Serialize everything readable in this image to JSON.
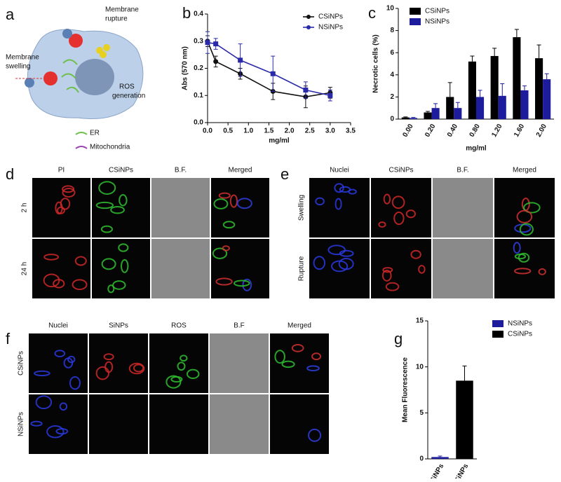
{
  "panel_labels": [
    "a",
    "b",
    "c",
    "d",
    "e",
    "f",
    "g"
  ],
  "diagram": {
    "rupture": [
      "Membrane",
      "rupture"
    ],
    "swelling": [
      "Membrane",
      "swelling"
    ],
    "ros": [
      "ROS",
      "generation"
    ],
    "er": "ER",
    "mito": "Mitochondria"
  },
  "panel_d": {
    "columns": [
      "PI",
      "CSiNPs",
      "B.F.",
      "Merged"
    ],
    "rows": [
      "2 h",
      "24 h"
    ]
  },
  "panel_e": {
    "columns": [
      "Nuclei",
      "CSiNPs",
      "B.F.",
      "Merged"
    ],
    "rows": [
      "Swelling",
      "Rupture"
    ]
  },
  "panel_f": {
    "columns": [
      "Nuclei",
      "SiNPs",
      "ROS",
      "B.F",
      "Merged"
    ],
    "rows": [
      "CSiNPs",
      "NSiNPs"
    ]
  },
  "chart_data": [
    {
      "type": "line",
      "xlabel": "mg/ml",
      "ylabel": "Abs (570 nm)",
      "legend": "upper right",
      "x": [
        0,
        0.2,
        0.8,
        1.6,
        2.4,
        3.0
      ],
      "series": [
        {
          "name": "CSiNPs",
          "color": "#111111",
          "values": [
            0.3,
            0.225,
            0.18,
            0.115,
            0.095,
            0.11
          ],
          "errors": [
            0.02,
            0.02,
            0.02,
            0.03,
            0.04,
            0.02
          ]
        },
        {
          "name": "NSiNPs",
          "color": "#2a2aa8",
          "values": [
            0.295,
            0.29,
            0.23,
            0.18,
            0.12,
            0.1
          ],
          "errors": [
            0.04,
            0.02,
            0.06,
            0.065,
            0.03,
            0.02
          ]
        }
      ],
      "xlim": [
        0,
        3.5
      ],
      "xticks": [
        {
          "value": 0,
          "label": "0.0"
        },
        0.5,
        {
          "value": 1,
          "label": "1.0"
        },
        1.5,
        {
          "value": 2,
          "label": "2.0"
        },
        2.5,
        {
          "value": 3,
          "label": "3.0"
        },
        3.5
      ],
      "ylim": [
        0,
        0.4
      ],
      "yticks": [
        {
          "value": 0,
          "label": "0.0"
        },
        0.1,
        0.2,
        0.3,
        0.4
      ]
    },
    {
      "type": "bar",
      "xlabel": "mg/ml",
      "ylabel": "Necrotic cells (%)",
      "legend": "upper left",
      "categories": [
        "0.00",
        "0.20",
        "0.40",
        "0.80",
        "1.20",
        "1.60",
        "2.00"
      ],
      "series": [
        {
          "name": "CSiNPs",
          "color": "#000000",
          "values": [
            0.15,
            0.6,
            2,
            5.2,
            5.7,
            7.4,
            5.5
          ],
          "errors": [
            0.05,
            0.1,
            1.3,
            0.5,
            0.7,
            0.7,
            1.2
          ]
        },
        {
          "name": "NSiNPs",
          "color": "#1c1c9c",
          "values": [
            0.1,
            1,
            1,
            2,
            2.1,
            2.6,
            3.6
          ],
          "errors": [
            0.05,
            0.4,
            0.5,
            0.6,
            1.1,
            0.4,
            0.5
          ]
        }
      ],
      "ylim": [
        0,
        10
      ],
      "yticks": [
        0,
        2,
        4,
        6,
        8,
        10
      ]
    },
    {
      "type": "bar",
      "ylabel": "Mean Fluorescence",
      "legend": "upper right",
      "categories": [
        "N.SiNPs",
        "C.SiNPs"
      ],
      "series": [
        {
          "name": "NSiNPs",
          "color": "#1c1c9c",
          "values": [
            0.2,
            null
          ],
          "errors": [
            0.1,
            null
          ]
        },
        {
          "name": "CSiNPs",
          "color": "#000000",
          "values": [
            null,
            8.5
          ],
          "errors": [
            null,
            1.6
          ]
        }
      ],
      "ylim": [
        0,
        15
      ],
      "yticks": [
        0,
        5,
        10,
        15
      ]
    }
  ]
}
